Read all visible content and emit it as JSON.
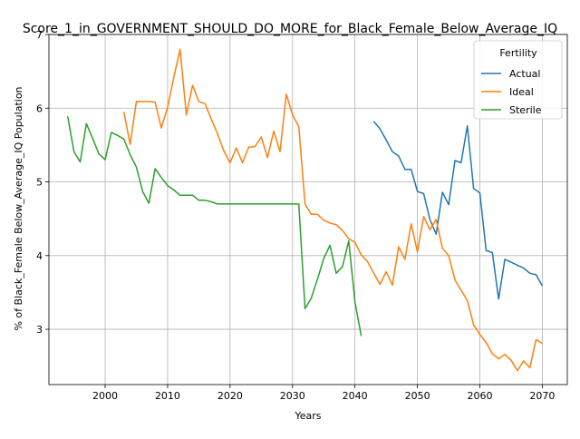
{
  "chart_data": {
    "type": "line",
    "title": "Score_1_in_GOVERNMENT_SHOULD_DO_MORE_for_Black_Female_Below_Average_IQ",
    "xlabel": "Years",
    "ylabel": "% of Black_Female Below_Average_IQ Population",
    "xlim": [
      1991,
      2074
    ],
    "ylim": [
      2.25,
      7.0
    ],
    "x_ticks": [
      2000,
      2010,
      2020,
      2030,
      2040,
      2050,
      2060,
      2070
    ],
    "y_ticks": [
      3,
      4,
      5,
      6,
      7
    ],
    "grid": true,
    "legend": {
      "title": "Fertility",
      "position": "top-right"
    },
    "series": [
      {
        "name": "Actual",
        "color": "#1f77b4",
        "points": [
          [
            2043,
            5.82
          ],
          [
            2044,
            5.72
          ],
          [
            2045,
            5.57
          ],
          [
            2046,
            5.41
          ],
          [
            2047,
            5.35
          ],
          [
            2048,
            5.17
          ],
          [
            2049,
            5.17
          ],
          [
            2050,
            4.87
          ],
          [
            2051,
            4.84
          ],
          [
            2052,
            4.49
          ],
          [
            2053,
            4.29
          ],
          [
            2054,
            4.86
          ],
          [
            2055,
            4.69
          ],
          [
            2056,
            5.29
          ],
          [
            2057,
            5.26
          ],
          [
            2058,
            5.76
          ],
          [
            2059,
            4.91
          ],
          [
            2060,
            4.85
          ],
          [
            2061,
            4.07
          ],
          [
            2062,
            4.04
          ],
          [
            2063,
            3.41
          ],
          [
            2064,
            3.95
          ],
          [
            2065,
            3.91
          ],
          [
            2066,
            3.87
          ],
          [
            2067,
            3.83
          ],
          [
            2068,
            3.76
          ],
          [
            2069,
            3.74
          ],
          [
            2070,
            3.59
          ]
        ]
      },
      {
        "name": "Ideal",
        "color": "#ff7f0e",
        "points": [
          [
            2003,
            5.95
          ],
          [
            2004,
            5.51
          ],
          [
            2005,
            6.09
          ],
          [
            2006,
            6.09
          ],
          [
            2007,
            6.09
          ],
          [
            2008,
            6.08
          ],
          [
            2009,
            5.73
          ],
          [
            2010,
            6.01
          ],
          [
            2011,
            6.42
          ],
          [
            2012,
            6.8
          ],
          [
            2013,
            5.91
          ],
          [
            2014,
            6.31
          ],
          [
            2015,
            6.09
          ],
          [
            2016,
            6.06
          ],
          [
            2017,
            5.85
          ],
          [
            2018,
            5.65
          ],
          [
            2019,
            5.42
          ],
          [
            2020,
            5.26
          ],
          [
            2021,
            5.46
          ],
          [
            2022,
            5.26
          ],
          [
            2023,
            5.47
          ],
          [
            2024,
            5.48
          ],
          [
            2025,
            5.61
          ],
          [
            2026,
            5.33
          ],
          [
            2027,
            5.69
          ],
          [
            2028,
            5.41
          ],
          [
            2029,
            6.19
          ],
          [
            2030,
            5.91
          ],
          [
            2031,
            5.75
          ],
          [
            2032,
            4.7
          ],
          [
            2033,
            4.56
          ],
          [
            2034,
            4.56
          ],
          [
            2035,
            4.48
          ],
          [
            2036,
            4.44
          ],
          [
            2037,
            4.42
          ],
          [
            2038,
            4.34
          ],
          [
            2039,
            4.23
          ],
          [
            2040,
            4.18
          ],
          [
            2041,
            4.01
          ],
          [
            2042,
            3.92
          ],
          [
            2043,
            3.76
          ],
          [
            2044,
            3.61
          ],
          [
            2045,
            3.78
          ],
          [
            2046,
            3.6
          ],
          [
            2047,
            4.12
          ],
          [
            2048,
            3.95
          ],
          [
            2049,
            4.43
          ],
          [
            2050,
            4.05
          ],
          [
            2051,
            4.53
          ],
          [
            2052,
            4.35
          ],
          [
            2053,
            4.49
          ],
          [
            2054,
            4.1
          ],
          [
            2055,
            4.0
          ],
          [
            2056,
            3.67
          ],
          [
            2057,
            3.53
          ],
          [
            2058,
            3.39
          ],
          [
            2059,
            3.06
          ],
          [
            2060,
            2.93
          ],
          [
            2061,
            2.82
          ],
          [
            2062,
            2.67
          ],
          [
            2063,
            2.6
          ],
          [
            2064,
            2.66
          ],
          [
            2065,
            2.58
          ],
          [
            2066,
            2.44
          ],
          [
            2067,
            2.57
          ],
          [
            2068,
            2.48
          ],
          [
            2069,
            2.86
          ],
          [
            2070,
            2.81
          ]
        ]
      },
      {
        "name": "Sterile",
        "color": "#2ca02c",
        "points": [
          [
            1994,
            5.89
          ],
          [
            1995,
            5.41
          ],
          [
            1996,
            5.27
          ],
          [
            1997,
            5.79
          ],
          [
            1998,
            5.59
          ],
          [
            1999,
            5.38
          ],
          [
            2000,
            5.3
          ],
          [
            2001,
            5.67
          ],
          [
            2002,
            5.63
          ],
          [
            2003,
            5.58
          ],
          [
            2004,
            5.37
          ],
          [
            2005,
            5.2
          ],
          [
            2006,
            4.87
          ],
          [
            2007,
            4.71
          ],
          [
            2008,
            5.18
          ],
          [
            2009,
            5.06
          ],
          [
            2010,
            4.95
          ],
          [
            2011,
            4.89
          ],
          [
            2012,
            4.82
          ],
          [
            2013,
            4.82
          ],
          [
            2014,
            4.82
          ],
          [
            2015,
            4.75
          ],
          [
            2016,
            4.75
          ],
          [
            2017,
            4.73
          ],
          [
            2018,
            4.7
          ],
          [
            2019,
            4.7
          ],
          [
            2020,
            4.7
          ],
          [
            2021,
            4.7
          ],
          [
            2022,
            4.7
          ],
          [
            2023,
            4.7
          ],
          [
            2024,
            4.7
          ],
          [
            2025,
            4.7
          ],
          [
            2026,
            4.7
          ],
          [
            2027,
            4.7
          ],
          [
            2028,
            4.7
          ],
          [
            2029,
            4.7
          ],
          [
            2030,
            4.7
          ],
          [
            2031,
            4.7
          ],
          [
            2032,
            3.28
          ],
          [
            2033,
            3.42
          ],
          [
            2034,
            3.68
          ],
          [
            2035,
            3.96
          ],
          [
            2036,
            4.14
          ],
          [
            2037,
            3.76
          ],
          [
            2038,
            3.85
          ],
          [
            2039,
            4.2
          ],
          [
            2040,
            3.37
          ],
          [
            2041,
            2.91
          ]
        ]
      }
    ]
  }
}
